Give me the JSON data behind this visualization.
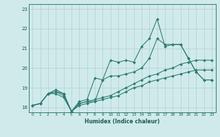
{
  "title": "",
  "xlabel": "Humidex (Indice chaleur)",
  "ylabel": "",
  "bg_color": "#d0eaec",
  "grid_color": "#b0ced2",
  "line_color": "#2e7d6e",
  "x_ticks": [
    0,
    1,
    2,
    3,
    4,
    5,
    6,
    7,
    8,
    9,
    10,
    11,
    12,
    13,
    14,
    15,
    16,
    17,
    18,
    19,
    20,
    21,
    22,
    23
  ],
  "ylim": [
    17.75,
    23.25
  ],
  "xlim": [
    -0.5,
    23.5
  ],
  "y_ticks": [
    18,
    19,
    20,
    21,
    22,
    23
  ],
  "series": [
    [
      18.1,
      18.2,
      18.7,
      18.8,
      18.6,
      17.8,
      18.2,
      18.3,
      18.3,
      19.4,
      20.4,
      20.3,
      20.4,
      20.3,
      21.1,
      21.5,
      22.5,
      21.1,
      21.2,
      21.2,
      20.5,
      19.8,
      19.4,
      19.4
    ],
    [
      18.1,
      18.2,
      18.7,
      18.7,
      18.5,
      17.8,
      18.3,
      18.4,
      19.5,
      19.4,
      19.6,
      19.6,
      19.7,
      19.8,
      20.0,
      20.5,
      21.5,
      21.2,
      21.2,
      21.2,
      20.5,
      19.8,
      19.4,
      19.4
    ],
    [
      18.1,
      18.2,
      18.7,
      18.8,
      18.7,
      17.8,
      18.2,
      18.3,
      18.4,
      18.5,
      18.6,
      18.8,
      19.0,
      19.2,
      19.4,
      19.6,
      19.7,
      19.9,
      20.0,
      20.2,
      20.3,
      20.4,
      20.4,
      20.4
    ],
    [
      18.1,
      18.2,
      18.7,
      18.9,
      18.7,
      17.8,
      18.1,
      18.2,
      18.3,
      18.4,
      18.5,
      18.6,
      18.8,
      19.0,
      19.1,
      19.3,
      19.4,
      19.5,
      19.6,
      19.7,
      19.8,
      19.9,
      19.9,
      19.9
    ]
  ]
}
